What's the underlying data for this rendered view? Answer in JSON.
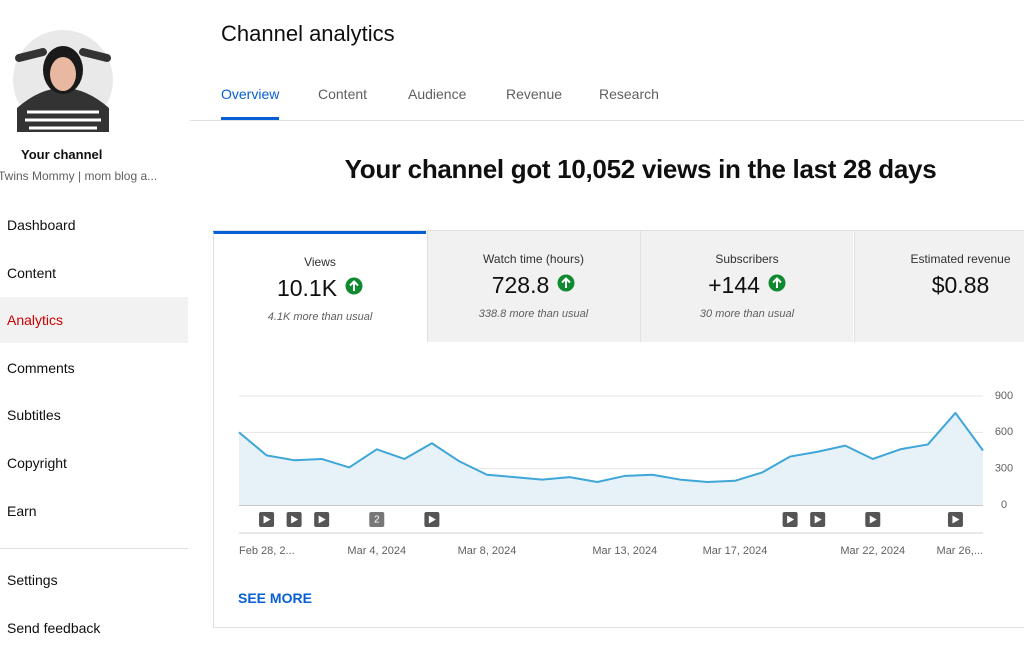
{
  "sidebar": {
    "channel_label": "Your channel",
    "channel_name": "Twins Mommy | mom blog a...",
    "nav": [
      {
        "label": "Dashboard"
      },
      {
        "label": "Content"
      },
      {
        "label": "Analytics",
        "active": true
      },
      {
        "label": "Comments"
      },
      {
        "label": "Subtitles"
      },
      {
        "label": "Copyright"
      },
      {
        "label": "Earn"
      }
    ],
    "footer_nav": [
      {
        "label": "Settings"
      },
      {
        "label": "Send feedback"
      }
    ]
  },
  "header": {
    "title": "Channel analytics",
    "tabs": [
      {
        "label": "Overview",
        "active": true
      },
      {
        "label": "Content"
      },
      {
        "label": "Audience"
      },
      {
        "label": "Revenue"
      },
      {
        "label": "Research"
      }
    ]
  },
  "headline": "Your channel got 10,052 views in the last 28 days",
  "metrics": [
    {
      "title": "Views",
      "value": "10.1K",
      "trend": "up",
      "note": "4.1K more than usual"
    },
    {
      "title": "Watch time (hours)",
      "value": "728.8",
      "trend": "up",
      "note": "338.8 more than usual"
    },
    {
      "title": "Subscribers",
      "value": "+144",
      "trend": "up",
      "note": "30 more than usual"
    },
    {
      "title": "Estimated revenue",
      "value": "$0.88"
    }
  ],
  "chart_data": {
    "type": "area",
    "color": "#3ea6d8",
    "fill": "#e6f2f7",
    "ylim": [
      0,
      900
    ],
    "yticks": [
      0,
      300,
      600,
      900
    ],
    "grid": true,
    "y_axis_side": "right",
    "categories": [
      "Feb 28, 2...",
      null,
      null,
      null,
      null,
      "Mar 4, 2024",
      null,
      null,
      null,
      "Mar 8, 2024",
      null,
      null,
      null,
      null,
      "Mar 13, 2024",
      null,
      null,
      null,
      "Mar 17, 2024",
      null,
      null,
      null,
      null,
      "Mar 22, 2024",
      null,
      null,
      null,
      "Mar 26,..."
    ],
    "values": [
      600,
      410,
      370,
      380,
      310,
      460,
      380,
      510,
      360,
      250,
      230,
      210,
      230,
      190,
      240,
      250,
      210,
      190,
      200,
      270,
      400,
      440,
      490,
      380,
      460,
      500,
      760,
      450
    ],
    "markers": [
      {
        "at": 1
      },
      {
        "at": 2
      },
      {
        "at": 3
      },
      {
        "at": 5,
        "label": "2"
      },
      {
        "at": 7
      },
      {
        "at": 20
      },
      {
        "at": 21
      },
      {
        "at": 23
      },
      {
        "at": 26
      }
    ]
  },
  "see_more": "SEE MORE"
}
